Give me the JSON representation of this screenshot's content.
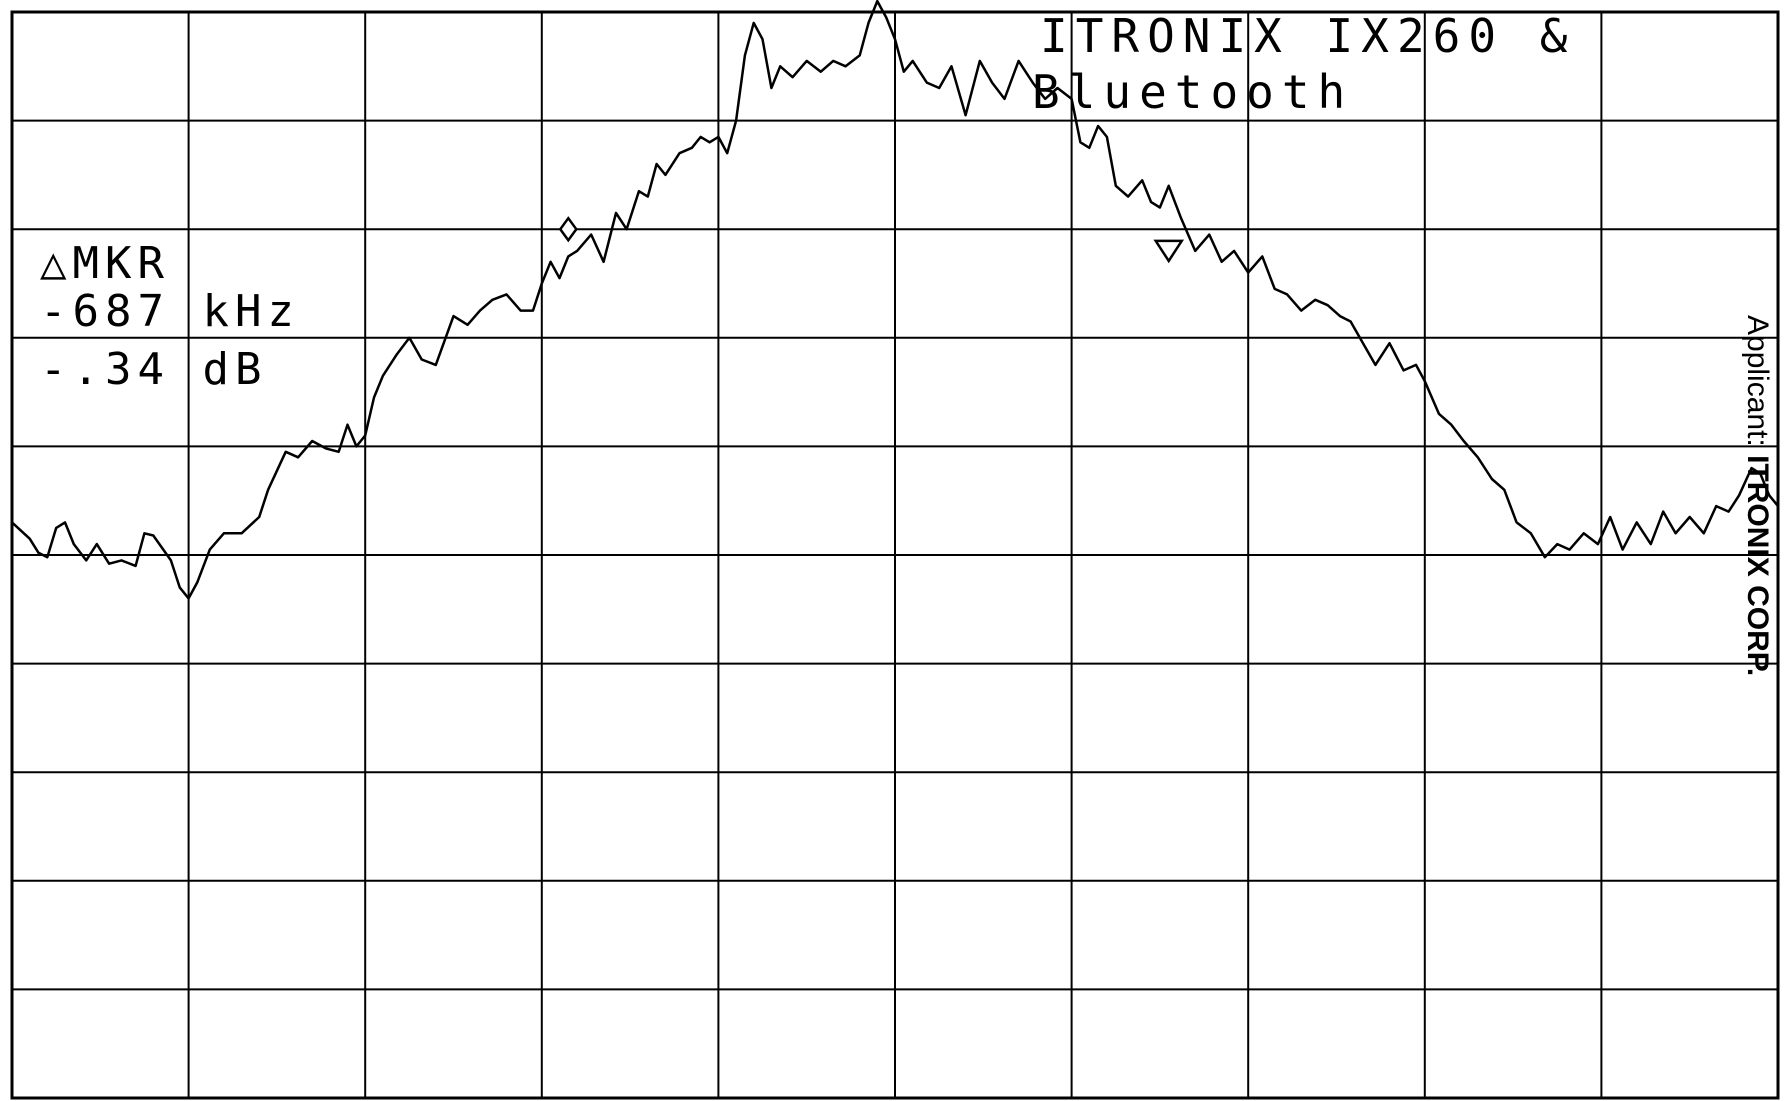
{
  "chart_data": {
    "type": "line",
    "instrument": "spectrum analyzer plot",
    "title_lines": [
      "ITRONIX IX260 &",
      "Bluetooth"
    ],
    "marker_readout": {
      "label": "△MKR",
      "frequency": "-687 kHz",
      "level": "-.34 dB"
    },
    "side_note": {
      "prefix": "Applicant: ",
      "company": "ITRONIX CORP."
    },
    "x_divisions": 10,
    "y_divisions": 10,
    "grid": true,
    "xlim": [
      0,
      10
    ],
    "ylim": [
      0,
      10
    ],
    "series": [
      {
        "values": [
          [
            0.0,
            5.3
          ],
          [
            0.1,
            5.15
          ],
          [
            0.15,
            5.02
          ],
          [
            0.2,
            4.98
          ],
          [
            0.25,
            5.25
          ],
          [
            0.3,
            5.3
          ],
          [
            0.35,
            5.1
          ],
          [
            0.42,
            4.95
          ],
          [
            0.48,
            5.1
          ],
          [
            0.55,
            4.92
          ],
          [
            0.62,
            4.95
          ],
          [
            0.7,
            4.9
          ],
          [
            0.75,
            5.2
          ],
          [
            0.8,
            5.18
          ],
          [
            0.9,
            4.95
          ],
          [
            0.95,
            4.7
          ],
          [
            1.0,
            4.6
          ],
          [
            1.05,
            4.75
          ],
          [
            1.12,
            5.05
          ],
          [
            1.2,
            5.2
          ],
          [
            1.3,
            5.2
          ],
          [
            1.4,
            5.35
          ],
          [
            1.45,
            5.6
          ],
          [
            1.55,
            5.95
          ],
          [
            1.62,
            5.9
          ],
          [
            1.7,
            6.05
          ],
          [
            1.78,
            5.98
          ],
          [
            1.85,
            5.95
          ],
          [
            1.9,
            6.2
          ],
          [
            1.95,
            6.0
          ],
          [
            2.0,
            6.1
          ],
          [
            2.05,
            6.45
          ],
          [
            2.1,
            6.65
          ],
          [
            2.18,
            6.85
          ],
          [
            2.25,
            7.0
          ],
          [
            2.32,
            6.8
          ],
          [
            2.4,
            6.75
          ],
          [
            2.5,
            7.2
          ],
          [
            2.58,
            7.12
          ],
          [
            2.65,
            7.25
          ],
          [
            2.72,
            7.35
          ],
          [
            2.8,
            7.4
          ],
          [
            2.88,
            7.25
          ],
          [
            2.95,
            7.25
          ],
          [
            3.0,
            7.5
          ],
          [
            3.05,
            7.7
          ],
          [
            3.1,
            7.55
          ],
          [
            3.15,
            7.75
          ],
          [
            3.2,
            7.8
          ],
          [
            3.28,
            7.95
          ],
          [
            3.35,
            7.7
          ],
          [
            3.42,
            8.15
          ],
          [
            3.48,
            8.0
          ],
          [
            3.55,
            8.35
          ],
          [
            3.6,
            8.3
          ],
          [
            3.65,
            8.6
          ],
          [
            3.7,
            8.5
          ],
          [
            3.78,
            8.7
          ],
          [
            3.85,
            8.75
          ],
          [
            3.9,
            8.85
          ],
          [
            3.95,
            8.8
          ],
          [
            4.0,
            8.85
          ],
          [
            4.05,
            8.7
          ],
          [
            4.1,
            9.0
          ],
          [
            4.15,
            9.6
          ],
          [
            4.2,
            9.9
          ],
          [
            4.25,
            9.75
          ],
          [
            4.3,
            9.3
          ],
          [
            4.35,
            9.5
          ],
          [
            4.42,
            9.4
          ],
          [
            4.5,
            9.55
          ],
          [
            4.58,
            9.45
          ],
          [
            4.65,
            9.55
          ],
          [
            4.72,
            9.5
          ],
          [
            4.8,
            9.6
          ],
          [
            4.85,
            9.9
          ],
          [
            4.9,
            10.1
          ],
          [
            4.95,
            9.95
          ],
          [
            5.0,
            9.75
          ],
          [
            5.05,
            9.45
          ],
          [
            5.1,
            9.55
          ],
          [
            5.18,
            9.35
          ],
          [
            5.25,
            9.3
          ],
          [
            5.32,
            9.5
          ],
          [
            5.4,
            9.05
          ],
          [
            5.48,
            9.55
          ],
          [
            5.55,
            9.35
          ],
          [
            5.62,
            9.2
          ],
          [
            5.7,
            9.55
          ],
          [
            5.78,
            9.35
          ],
          [
            5.85,
            9.2
          ],
          [
            5.92,
            9.3
          ],
          [
            6.0,
            9.2
          ],
          [
            6.05,
            8.8
          ],
          [
            6.1,
            8.75
          ],
          [
            6.15,
            8.95
          ],
          [
            6.2,
            8.85
          ],
          [
            6.25,
            8.4
          ],
          [
            6.32,
            8.3
          ],
          [
            6.4,
            8.45
          ],
          [
            6.45,
            8.25
          ],
          [
            6.5,
            8.2
          ],
          [
            6.55,
            8.4
          ],
          [
            6.62,
            8.1
          ],
          [
            6.7,
            7.8
          ],
          [
            6.78,
            7.95
          ],
          [
            6.85,
            7.7
          ],
          [
            6.92,
            7.8
          ],
          [
            7.0,
            7.6
          ],
          [
            7.08,
            7.75
          ],
          [
            7.15,
            7.45
          ],
          [
            7.22,
            7.4
          ],
          [
            7.3,
            7.25
          ],
          [
            7.38,
            7.35
          ],
          [
            7.45,
            7.3
          ],
          [
            7.52,
            7.2
          ],
          [
            7.58,
            7.15
          ],
          [
            7.65,
            6.95
          ],
          [
            7.72,
            6.75
          ],
          [
            7.8,
            6.95
          ],
          [
            7.88,
            6.7
          ],
          [
            7.95,
            6.75
          ],
          [
            8.0,
            6.6
          ],
          [
            8.08,
            6.3
          ],
          [
            8.15,
            6.2
          ],
          [
            8.22,
            6.05
          ],
          [
            8.3,
            5.9
          ],
          [
            8.38,
            5.7
          ],
          [
            8.45,
            5.6
          ],
          [
            8.52,
            5.3
          ],
          [
            8.6,
            5.2
          ],
          [
            8.68,
            4.98
          ],
          [
            8.75,
            5.1
          ],
          [
            8.82,
            5.05
          ],
          [
            8.9,
            5.2
          ],
          [
            8.98,
            5.1
          ],
          [
            9.05,
            5.35
          ],
          [
            9.12,
            5.05
          ],
          [
            9.2,
            5.3
          ],
          [
            9.28,
            5.1
          ],
          [
            9.35,
            5.4
          ],
          [
            9.42,
            5.2
          ],
          [
            9.5,
            5.35
          ],
          [
            9.58,
            5.2
          ],
          [
            9.65,
            5.45
          ],
          [
            9.72,
            5.4
          ],
          [
            9.78,
            5.55
          ],
          [
            9.85,
            5.8
          ],
          [
            9.9,
            5.75
          ],
          [
            9.95,
            5.55
          ],
          [
            10.0,
            5.45
          ]
        ]
      }
    ],
    "markers": [
      {
        "shape": "diamond",
        "x": 3.15,
        "y": 8.0
      },
      {
        "shape": "triangle-down",
        "x": 6.55,
        "y": 7.8
      }
    ]
  }
}
